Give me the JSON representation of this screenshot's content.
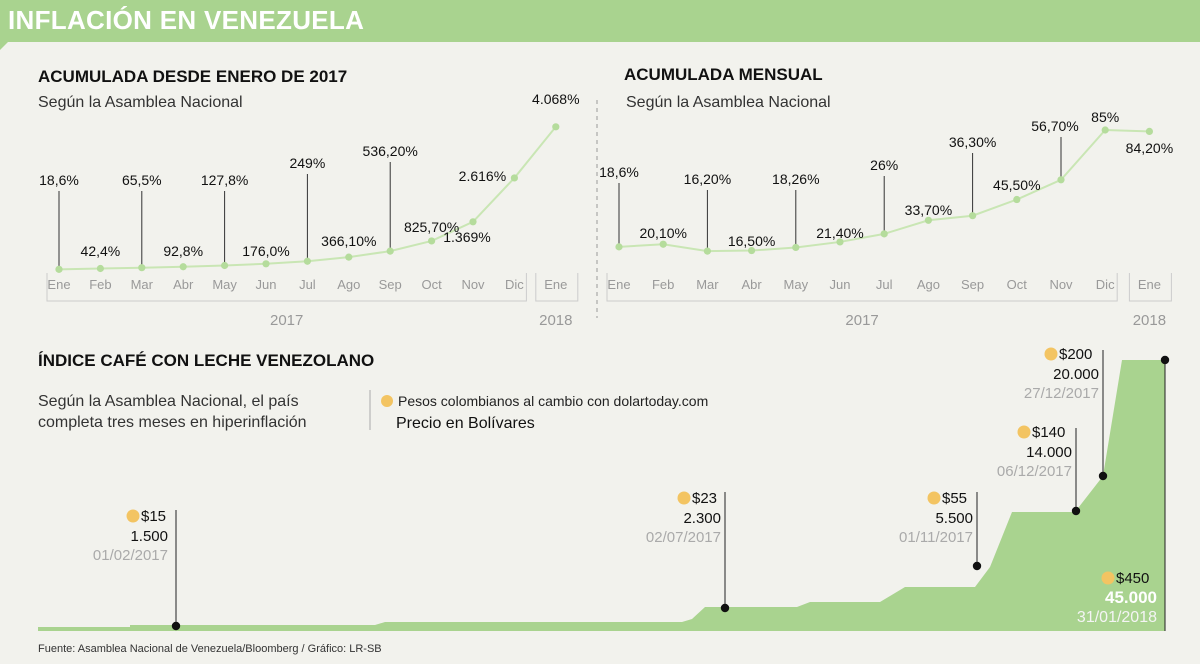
{
  "header": {
    "title": "INFLACIÓN EN VENEZUELA"
  },
  "colors": {
    "green": "#a9d38f",
    "line": "#c9e6b4",
    "dot": "#b5dc9c",
    "coin": "#f3c462",
    "area": "#a9d38f"
  },
  "chart_data": [
    {
      "type": "line",
      "title": "ACUMULADA DESDE ENERO DE 2017",
      "subtitle": "Según la Asamblea Nacional",
      "categories": [
        "Ene",
        "Feb",
        "Mar",
        "Abr",
        "May",
        "Jun",
        "Jul",
        "Ago",
        "Sep",
        "Oct",
        "Nov",
        "Dic",
        "Ene"
      ],
      "values": [
        18.6,
        42.4,
        65.5,
        92.8,
        127.8,
        176.0,
        249,
        366.1,
        536.2,
        825.7,
        1369,
        2616,
        4068
      ],
      "labels": [
        "18,6%",
        "42,4%",
        "65,5%",
        "92,8%",
        "127,8%",
        "176,0%",
        "249%",
        "366,10%",
        "536,20%",
        "825,70%",
        "1.369%",
        "2.616%",
        "4.068%"
      ],
      "years": [
        "2017",
        "2018"
      ]
    },
    {
      "type": "line",
      "title": "ACUMULADA MENSUAL",
      "subtitle": "Según la Asamblea Nacional",
      "categories": [
        "Ene",
        "Feb",
        "Mar",
        "Abr",
        "May",
        "Jun",
        "Jul",
        "Ago",
        "Sep",
        "Oct",
        "Nov",
        "Dic",
        "Ene"
      ],
      "values": [
        18.6,
        20.1,
        16.2,
        16.5,
        18.26,
        21.4,
        26,
        33.7,
        36.3,
        45.5,
        56.7,
        85,
        84.2
      ],
      "labels": [
        "18,6%",
        "20,10%",
        "16,20%",
        "16,50%",
        "18,26%",
        "21,40%",
        "26%",
        "33,70%",
        "36,30%",
        "45,50%",
        "56,70%",
        "85%",
        "84,20%"
      ],
      "years": [
        "2017",
        "2018"
      ]
    },
    {
      "type": "area",
      "title": "ÍNDICE CAFÉ CON LECHE VENEZOLANO",
      "subtitle_lines": [
        "Según la Asamblea Nacional, el país",
        "completa tres meses en hiperinflación"
      ],
      "legend": [
        "Pesos colombianos al cambio con dolartoday.com",
        "Precio en Bolívares"
      ],
      "points": [
        {
          "usd": "$15",
          "bolivares": "1.500",
          "date": "01/02/2017"
        },
        {
          "usd": "$23",
          "bolivares": "2.300",
          "date": "02/07/2017"
        },
        {
          "usd": "$55",
          "bolivares": "5.500",
          "date": "01/11/2017"
        },
        {
          "usd": "$140",
          "bolivares": "14.000",
          "date": "06/12/2017"
        },
        {
          "usd": "$200",
          "bolivares": "20.000",
          "date": "27/12/2017"
        },
        {
          "usd": "$450",
          "bolivares": "45.000",
          "date": "31/01/2018"
        }
      ]
    }
  ],
  "footer": {
    "source": "Fuente: Asamblea Nacional de Venezuela/Bloomberg  / Gráfico: LR-SB"
  }
}
